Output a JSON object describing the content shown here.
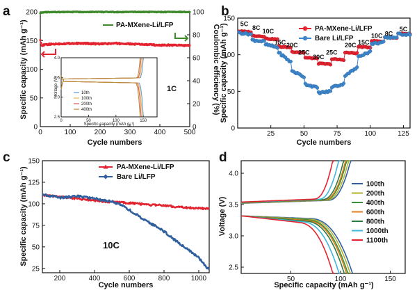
{
  "chart_data": [
    {
      "panel": "a",
      "type": "scatter",
      "xlabel": "Cycle numbers",
      "ylabel": "Specific capacity (mAh g⁻¹)",
      "y2label": "Coulombic efficiency (%)",
      "xlim": [
        0,
        500
      ],
      "ylim": [
        0,
        200
      ],
      "y2lim": [
        0,
        100
      ],
      "xticks": [
        "0",
        "100",
        "200",
        "300",
        "400",
        "500"
      ],
      "yticks": [
        "0",
        "50",
        "100",
        "150",
        "200"
      ],
      "y2ticks": [
        "0",
        "20",
        "40",
        "60",
        "80",
        "100"
      ],
      "legend": [
        "PA-MXene-Li/LFP"
      ],
      "rate_label": "1C",
      "series": [
        {
          "name": "PA-MXene-Li/LFP",
          "axis": "left",
          "color": "#e3232f",
          "x": [
            0,
            5,
            10,
            20,
            50,
            100,
            150,
            200,
            250,
            300,
            350,
            400,
            450,
            500
          ],
          "y": [
            152,
            140,
            142,
            143,
            144,
            145,
            145,
            144,
            145,
            144,
            143,
            142,
            142,
            141
          ]
        },
        {
          "axis": "right",
          "color": "#3f8a2c",
          "x": [
            0,
            10,
            50,
            100,
            150,
            200,
            250,
            300,
            350,
            400,
            450,
            500
          ],
          "y": [
            99,
            99.6,
            99.8,
            99.9,
            99.9,
            99.9,
            99.8,
            99.9,
            99.9,
            99.8,
            99.9,
            99.9
          ]
        }
      ],
      "inset": {
        "xlabel": "Specific capacity (mAh g⁻¹)",
        "ylabel": "Voltage (V)",
        "xlim": [
          0,
          175
        ],
        "ylim": [
          2.5,
          4.0
        ],
        "xticks": [
          "0",
          "50",
          "100",
          "150"
        ],
        "yticks": [
          "2.5",
          "3.0",
          "3.5",
          "4.0"
        ],
        "series": [
          {
            "name": "10th",
            "color": "#5b9bd5",
            "cap": 150
          },
          {
            "name": "100th",
            "color": "#e8b84a",
            "cap": 148
          },
          {
            "name": "200th",
            "color": "#d9534f",
            "cap": 146
          },
          {
            "name": "400th",
            "color": "#b98a2f",
            "cap": 144
          }
        ]
      }
    },
    {
      "panel": "b",
      "type": "scatter",
      "xlabel": "Cycle numbers",
      "ylabel": "Specific capacity (mAh g⁻¹)",
      "xlim": [
        0,
        130
      ],
      "ylim": [
        0,
        150
      ],
      "xticks": [
        "25",
        "50",
        "75",
        "100",
        "125"
      ],
      "yticks": [
        "0",
        "50",
        "100",
        "150"
      ],
      "rate_labels": [
        {
          "label": "5C",
          "x": 5,
          "y": 139
        },
        {
          "label": "8C",
          "x": 14,
          "y": 134
        },
        {
          "label": "10C",
          "x": 23,
          "y": 129
        },
        {
          "label": "15C",
          "x": 32,
          "y": 114
        },
        {
          "label": "20C",
          "x": 41,
          "y": 110
        },
        {
          "label": "25C",
          "x": 50,
          "y": 100
        },
        {
          "label": "30C",
          "x": 61,
          "y": 94
        },
        {
          "label": "25C",
          "x": 71,
          "y": 100
        },
        {
          "label": "20C",
          "x": 85,
          "y": 110
        },
        {
          "label": "15C",
          "x": 95,
          "y": 114
        },
        {
          "label": "10C",
          "x": 105,
          "y": 123
        },
        {
          "label": "8C",
          "x": 114,
          "y": 126
        },
        {
          "label": "5C",
          "x": 125,
          "y": 132
        }
      ],
      "series": [
        {
          "name": "PA-MXene-Li/LFP",
          "color": "#e3232f",
          "x": [
            1,
            10,
            11,
            20,
            21,
            30,
            31,
            40,
            41,
            50,
            51,
            60,
            61,
            70,
            71,
            80,
            81,
            90,
            91,
            100,
            101,
            110,
            111,
            120,
            121,
            130
          ],
          "y": [
            132,
            131,
            126,
            125,
            122,
            121,
            111,
            110,
            104,
            103,
            96,
            95,
            88,
            87,
            94,
            93,
            103,
            102,
            111,
            110,
            119,
            118,
            124,
            123,
            129,
            128
          ]
        },
        {
          "name": "Bare Li/LFP",
          "color": "#3e86c9",
          "x": [
            1,
            10,
            11,
            20,
            21,
            30,
            31,
            40,
            41,
            50,
            51,
            60,
            61,
            70,
            71,
            80,
            81,
            90,
            91,
            100,
            101,
            110,
            111,
            120,
            121,
            130
          ],
          "y": [
            130,
            128,
            120,
            118,
            114,
            110,
            103,
            90,
            78,
            70,
            60,
            55,
            48,
            50,
            56,
            60,
            72,
            82,
            98,
            104,
            115,
            117,
            123,
            124,
            128,
            128
          ]
        }
      ]
    },
    {
      "panel": "c",
      "type": "line",
      "xlabel": "Cycle numbers",
      "ylabel": "Specific capacity (mAh g⁻¹)",
      "xlim": [
        100,
        1060
      ],
      "ylim": [
        20,
        150
      ],
      "xticks": [
        "200",
        "400",
        "600",
        "800",
        "1000"
      ],
      "yticks": [
        "25",
        "50",
        "75",
        "100",
        "125",
        "150"
      ],
      "rate_label": "10C",
      "series": [
        {
          "name": "PA-MXene-Li/LFP",
          "color": "#e3232f",
          "x": [
            100,
            200,
            300,
            400,
            500,
            600,
            700,
            800,
            900,
            1000,
            1060
          ],
          "y": [
            110,
            108,
            106,
            104,
            102,
            101,
            99,
            98,
            96,
            95,
            94
          ]
        },
        {
          "name": "Bare Li/LFP",
          "color": "#2f5f9e",
          "x": [
            100,
            200,
            300,
            400,
            450,
            500,
            550,
            600,
            650,
            700,
            750,
            800,
            850,
            900,
            950,
            1000,
            1030,
            1060
          ],
          "y": [
            111,
            107,
            109,
            106,
            104,
            103,
            99,
            93,
            86,
            80,
            74,
            68,
            60,
            52,
            45,
            37,
            30,
            23
          ]
        }
      ]
    },
    {
      "panel": "d",
      "type": "line",
      "xlabel": "Specific capacity (mAh g⁻¹)",
      "ylabel": "Voltage (V)",
      "xlim": [
        0,
        165
      ],
      "ylim": [
        2.4,
        4.2
      ],
      "xticks": [
        "50",
        "100",
        "150"
      ],
      "yticks": [
        "2.5",
        "3.0",
        "3.5",
        "4.0"
      ],
      "series": [
        {
          "name": "100th",
          "color": "#2f5f9e",
          "cap": 112
        },
        {
          "name": "200th",
          "color": "#b2b333",
          "cap": 110
        },
        {
          "name": "400th",
          "color": "#3a8f3a",
          "cap": 108
        },
        {
          "name": "600th",
          "color": "#e07a1f",
          "cap": 107
        },
        {
          "name": "800th",
          "color": "#2f7a3f",
          "cap": 105
        },
        {
          "name": "1000th",
          "color": "#3fb6d8",
          "cap": 100
        },
        {
          "name": "1100th",
          "color": "#e3232f",
          "cap": 94
        }
      ]
    }
  ]
}
